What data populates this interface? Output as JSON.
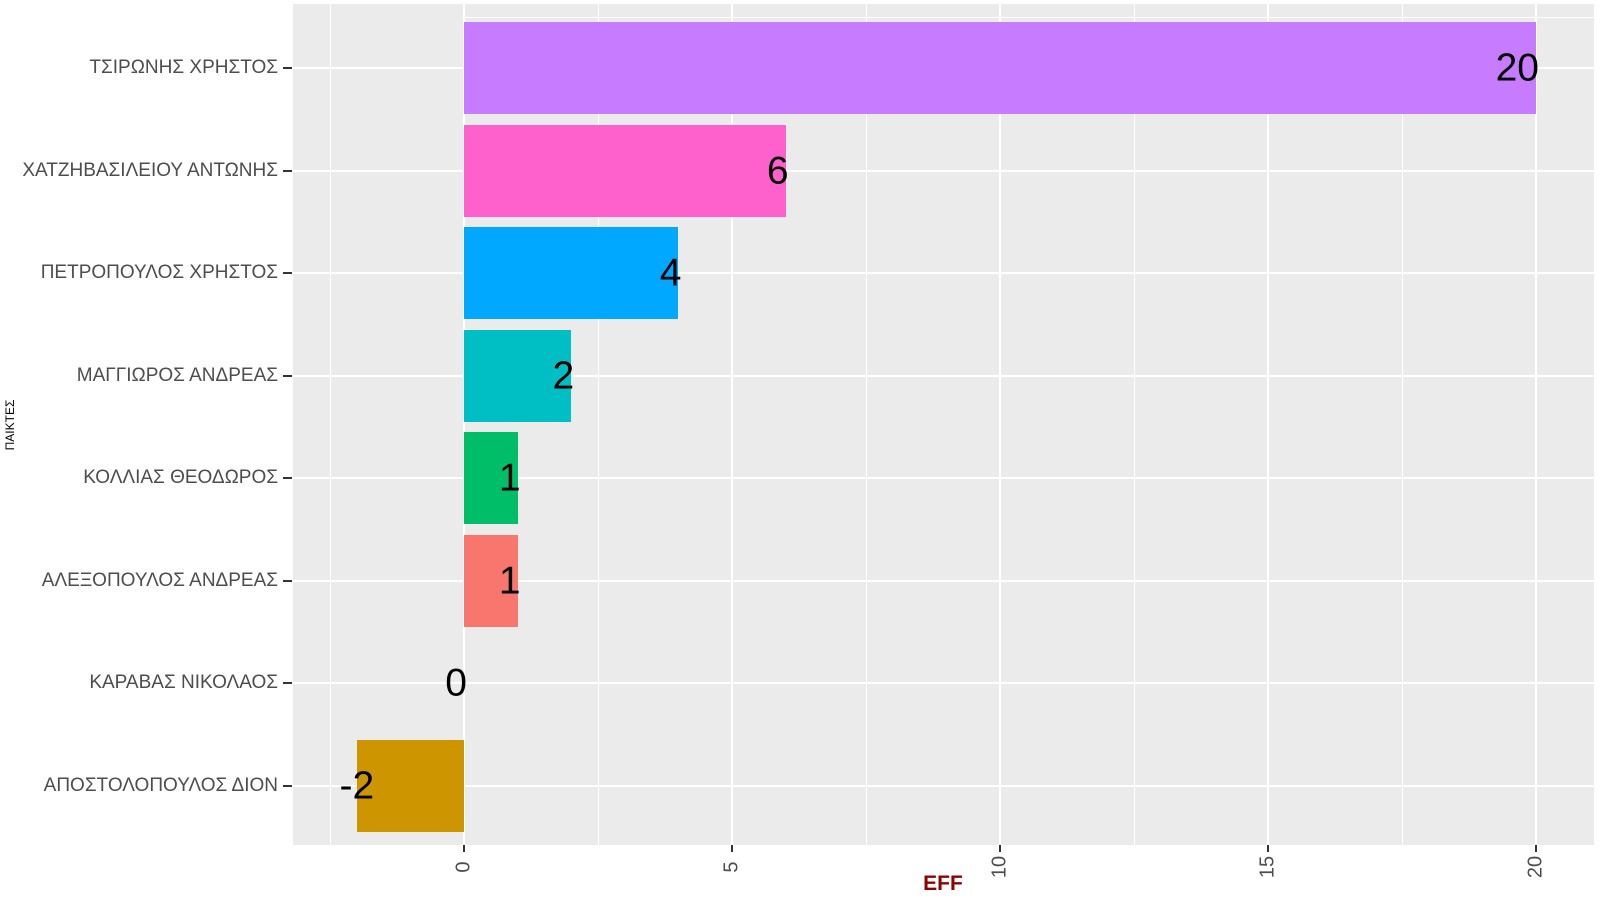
{
  "chart_data": {
    "type": "bar",
    "orientation": "horizontal",
    "title": "",
    "xlabel": "EFF",
    "ylabel": "ΠΑΙΚΤΕΣ",
    "categories": [
      "ΤΣΙΡΩΝΗΣ ΧΡΗΣΤΟΣ",
      "ΧΑΤΖΗΒΑΣΙΛΕΙΟΥ ΑΝΤΩΝΗΣ",
      "ΠΕΤΡΟΠΟΥΛΟΣ ΧΡΗΣΤΟΣ",
      "ΜΑΓΓΙΩΡΟΣ ΑΝΔΡΕΑΣ",
      "ΚΟΛΛΙΑΣ ΘΕΟΔΩΡΟΣ",
      "ΑΛΕΞΟΠΟΥΛΟΣ ΑΝΔΡΕΑΣ",
      "ΚΑΡΑΒΑΣ ΝΙΚΟΛΑΟΣ",
      "ΑΠΟΣΤΟΛΟΠΟΥΛΟΣ ΔΙΟΝ"
    ],
    "values": [
      20,
      6,
      4,
      2,
      1,
      1,
      0,
      -2
    ],
    "value_labels": [
      "20",
      "6",
      "4",
      "2",
      "1",
      "1",
      "0",
      "-2"
    ],
    "bar_colors": [
      "#C77CFF",
      "#FF61CC",
      "#00A9FF",
      "#00BFC4",
      "#00BE67",
      "#F8766D",
      "#7CAE00",
      "#CD9600"
    ],
    "x_major_ticks": [
      0,
      5,
      10,
      15,
      20
    ],
    "x_minor_ticks": [
      -2.5,
      2.5,
      7.5,
      12.5,
      17.5
    ],
    "xlim": [
      -3.2,
      21.1
    ],
    "grid": true,
    "legend_position": "none",
    "panel_background": "#EBEBEB",
    "gridline_color": "#FFFFFF",
    "axis_text_color": "#4D4D4D",
    "tick_mark_color": "#333333",
    "xlabel_color": "#8B0000",
    "value_label_color": "#000000"
  }
}
